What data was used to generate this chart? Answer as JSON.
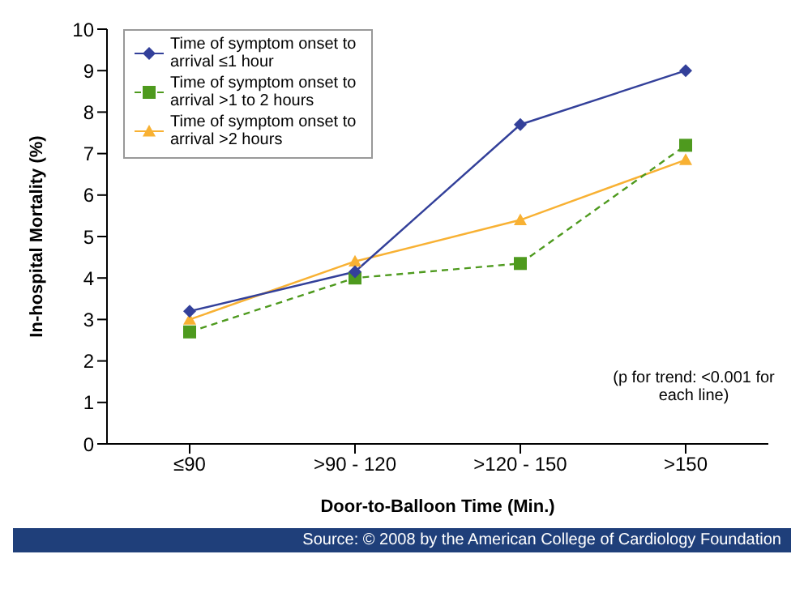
{
  "chart_data": {
    "type": "line",
    "xlabel": "Door-to-Balloon Time (Min.)",
    "ylabel": "In-hospital Mortality (%)",
    "categories": [
      "≤90",
      ">90 - 120",
      ">120 - 150",
      ">150"
    ],
    "series": [
      {
        "name": "Time of symptom onset to arrival ≤1 hour",
        "color": "#33409a",
        "values": [
          3.2,
          4.15,
          7.7,
          9.0
        ],
        "marker": "diamond",
        "line_style": "solid"
      },
      {
        "name": "Time of symptom onset to arrival >1 to 2 hours",
        "color": "#4e9a1e",
        "values": [
          2.7,
          4.0,
          4.35,
          7.2
        ],
        "marker": "square",
        "line_style": "dashed"
      },
      {
        "name": "Time of symptom onset to arrival >2 hours",
        "color": "#f8b133",
        "values": [
          3.0,
          4.4,
          5.4,
          6.85
        ],
        "marker": "triangle",
        "line_style": "solid"
      }
    ],
    "ylim": [
      0,
      10
    ],
    "yticks": [
      0,
      1,
      2,
      3,
      4,
      5,
      6,
      7,
      8,
      9,
      10
    ],
    "grid": false,
    "legend": "top left",
    "annotations": [
      "(p for trend: <0.001 for each line)",
      "Source: © 2008 by the American College of Cardiology Foundation"
    ]
  }
}
